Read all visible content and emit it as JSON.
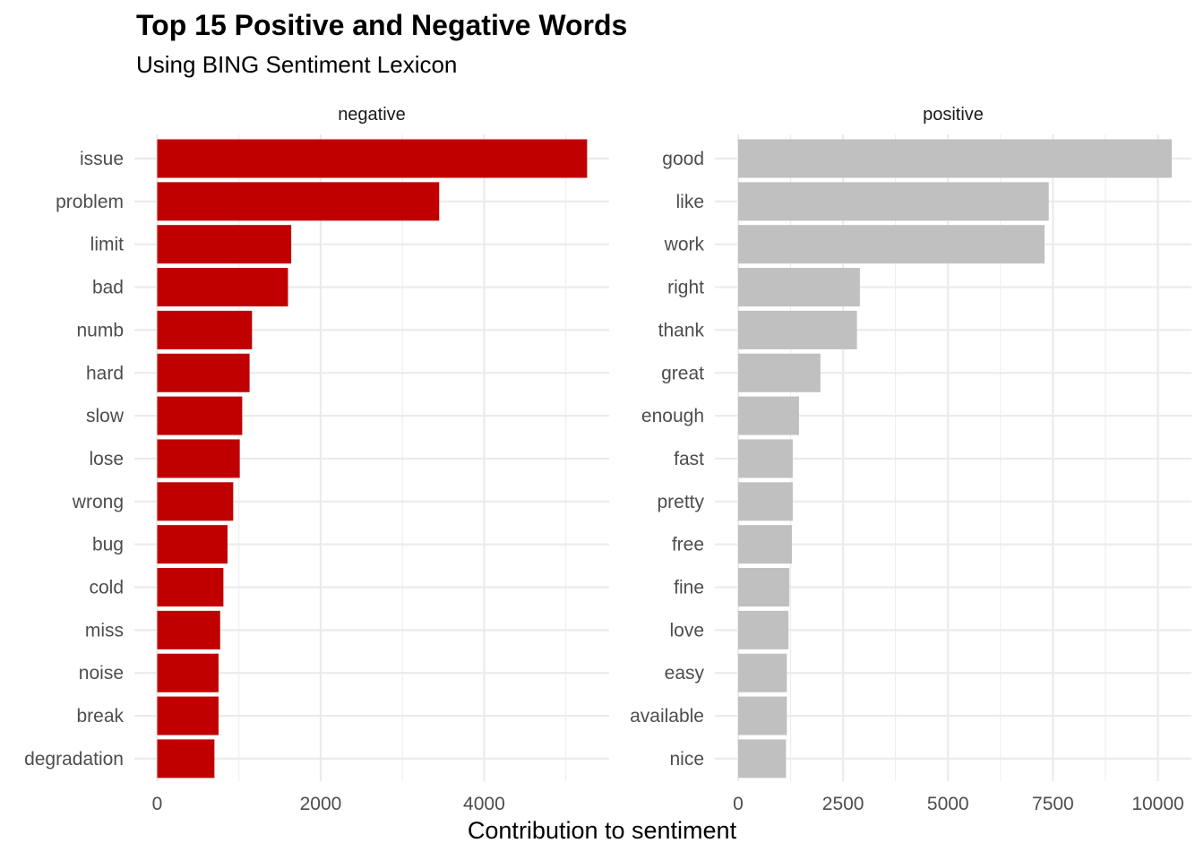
{
  "title": "Top 15 Positive and Negative Words",
  "subtitle": "Using BING Sentiment Lexicon",
  "xlabel": "Contribution to sentiment",
  "colors": {
    "negative": "#C00000",
    "positive": "#C0C0C0",
    "grid": "#EBEBEB",
    "text": "#4D4D4D"
  },
  "chart_data": {
    "type": "bar",
    "orientation": "horizontal",
    "title": "Top 15 Positive and Negative Words",
    "subtitle": "Using BING Sentiment Lexicon",
    "xlabel": "Contribution to sentiment",
    "ylabel": "",
    "grid": true,
    "legend": "none",
    "panels": [
      {
        "name": "negative",
        "xlim": [
          0,
          5530
        ],
        "xticks": [
          0,
          2000,
          4000
        ],
        "categories": [
          "issue",
          "problem",
          "limit",
          "bad",
          "numb",
          "hard",
          "slow",
          "lose",
          "wrong",
          "bug",
          "cold",
          "miss",
          "noise",
          "break",
          "degradation"
        ],
        "values": [
          5260,
          3450,
          1640,
          1600,
          1160,
          1130,
          1040,
          1010,
          930,
          860,
          810,
          770,
          750,
          750,
          700
        ]
      },
      {
        "name": "positive",
        "xlim": [
          0,
          10800
        ],
        "xticks": [
          0,
          2500,
          5000,
          7500,
          10000
        ],
        "categories": [
          "good",
          "like",
          "work",
          "right",
          "thank",
          "great",
          "enough",
          "fast",
          "pretty",
          "free",
          "fine",
          "love",
          "easy",
          "available",
          "nice"
        ],
        "values": [
          10330,
          7400,
          7300,
          2900,
          2830,
          1960,
          1450,
          1300,
          1300,
          1280,
          1220,
          1200,
          1160,
          1160,
          1140
        ]
      }
    ]
  }
}
